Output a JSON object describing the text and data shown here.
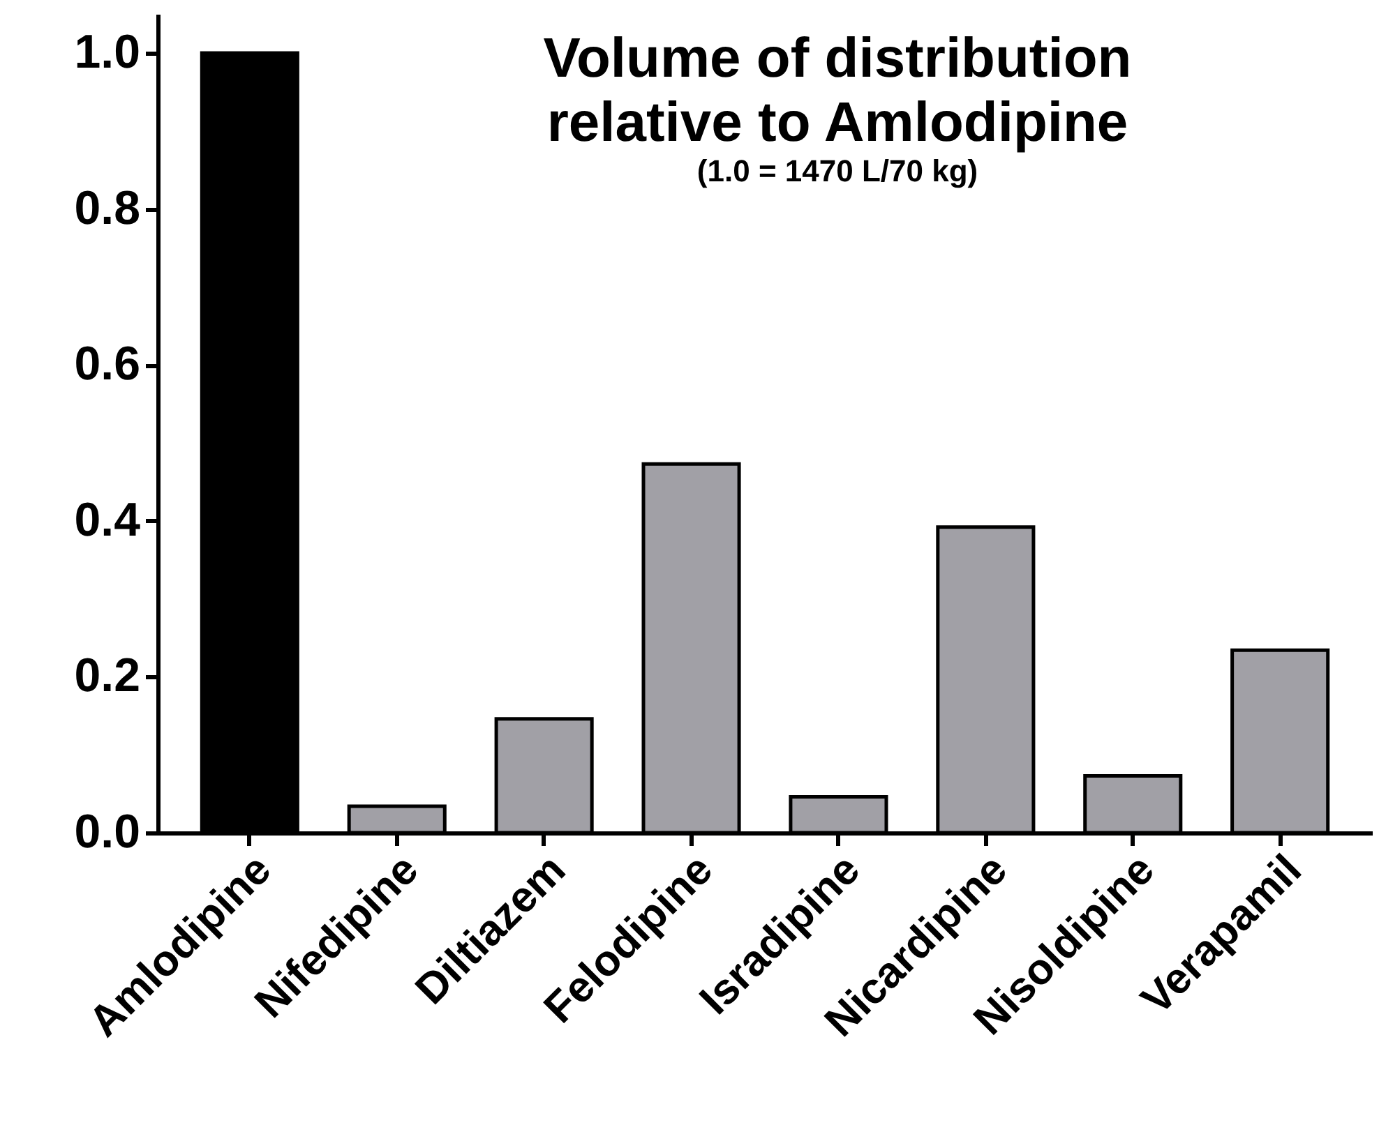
{
  "chart_data": {
    "type": "bar",
    "title": [
      "Volume of distribution",
      "relative to Amlodipine"
    ],
    "subtitle": "(1.0 = 1470 L/70 kg)",
    "categories": [
      "Amlodipine",
      "Nifedipine",
      "Diltiazem",
      "Felodipine",
      "Isradipine",
      "Nicardipine",
      "Nisoldipine",
      "Verapamil"
    ],
    "values": [
      1.0,
      0.034,
      0.146,
      0.473,
      0.046,
      0.392,
      0.073,
      0.234
    ],
    "colors": [
      "#000000",
      "#a1a0a6",
      "#a1a0a6",
      "#a1a0a6",
      "#a1a0a6",
      "#a1a0a6",
      "#a1a0a6",
      "#a1a0a6"
    ],
    "ylim": [
      0,
      1.05
    ],
    "yticks": [
      {
        "value": 0,
        "label": "0.0"
      },
      0.2,
      0.4,
      0.6,
      0.8,
      {
        "value": 1,
        "label": "1.0"
      }
    ],
    "grid": false
  }
}
